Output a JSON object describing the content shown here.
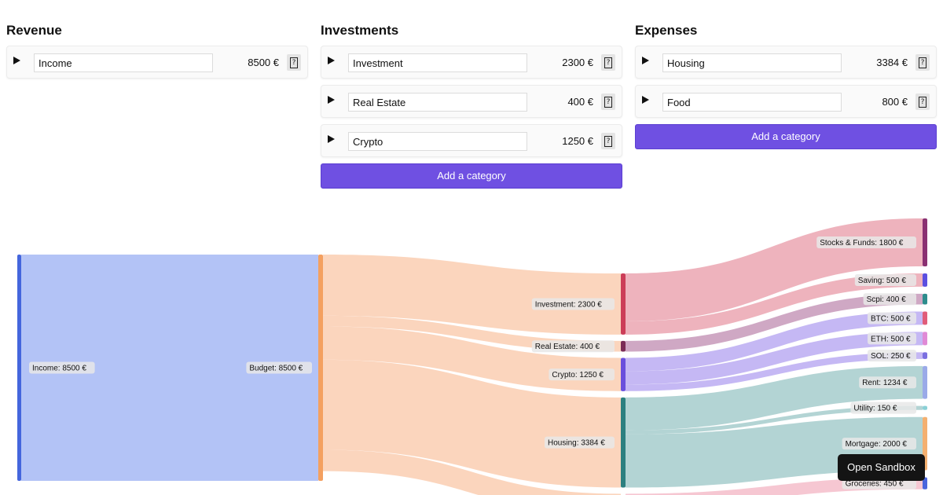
{
  "columns": [
    {
      "title": "Revenue",
      "rows": [
        {
          "name": "Income",
          "amount": "8500 €"
        }
      ],
      "add_label": null
    },
    {
      "title": "Investments",
      "rows": [
        {
          "name": "Investment",
          "amount": "2300 €"
        },
        {
          "name": "Real Estate",
          "amount": "400 €"
        },
        {
          "name": "Crypto",
          "amount": "1250 €"
        }
      ],
      "add_label": "Add a category"
    },
    {
      "title": "Expenses",
      "rows": [
        {
          "name": "Housing",
          "amount": "3384 €"
        },
        {
          "name": "Food",
          "amount": "800 €"
        }
      ],
      "add_label": "Add a category"
    }
  ],
  "help_glyph": "?",
  "icons": {
    "expand": "triangle-right-icon",
    "help": "help-box-icon"
  },
  "chart_data": {
    "type": "sankey",
    "unit": "€",
    "nodes": [
      {
        "id": "income",
        "label": "Income: 8500 €",
        "value": 8500,
        "level": 0,
        "color": "#4466dd"
      },
      {
        "id": "budget",
        "label": "Budget: 8500 €",
        "value": 8500,
        "level": 1,
        "color": "#f4a060"
      },
      {
        "id": "investment",
        "label": "Investment: 2300 €",
        "value": 2300,
        "level": 2,
        "color": "#cc3d58"
      },
      {
        "id": "realestate",
        "label": "Real Estate: 400 €",
        "value": 400,
        "level": 2,
        "color": "#7b2b56"
      },
      {
        "id": "crypto",
        "label": "Crypto: 1250 €",
        "value": 1250,
        "level": 2,
        "color": "#6a4fdc"
      },
      {
        "id": "housing",
        "label": "Housing: 3384 €",
        "value": 3384,
        "level": 2,
        "color": "#2d8080"
      },
      {
        "id": "stocks",
        "label": "Stocks & Funds: 1800 €",
        "value": 1800,
        "level": 3,
        "color": "#8a3172"
      },
      {
        "id": "saving",
        "label": "Saving: 500 €",
        "value": 500,
        "level": 3,
        "color": "#5b4fe0"
      },
      {
        "id": "scpi",
        "label": "Scpi: 400 €",
        "value": 400,
        "level": 3,
        "color": "#2d8c8c"
      },
      {
        "id": "btc",
        "label": "BTC: 500 €",
        "value": 500,
        "level": 3,
        "color": "#e05c7a"
      },
      {
        "id": "eth",
        "label": "ETH: 500 €",
        "value": 500,
        "level": 3,
        "color": "#e08ad6"
      },
      {
        "id": "sol",
        "label": "SOL: 250 €",
        "value": 250,
        "level": 3,
        "color": "#7b6fe0"
      },
      {
        "id": "rent",
        "label": "Rent: 1234 €",
        "value": 1234,
        "level": 3,
        "color": "#9aaae8"
      },
      {
        "id": "utility",
        "label": "Utility: 150 €",
        "value": 150,
        "level": 3,
        "color": "#8ad0d6"
      },
      {
        "id": "mortgage",
        "label": "Mortgage: 2000 €",
        "value": 2000,
        "level": 3,
        "color": "#f4b070"
      },
      {
        "id": "groceries",
        "label": "Groceries: 450 €",
        "value": 450,
        "level": 3,
        "color": "#4a66dd"
      }
    ],
    "links": [
      {
        "source": "income",
        "target": "budget",
        "value": 8500,
        "color": "#b3c3f6"
      },
      {
        "source": "budget",
        "target": "investment",
        "value": 2300,
        "color": "#fbd5bd"
      },
      {
        "source": "budget",
        "target": "realestate",
        "value": 400,
        "color": "#fbd5bd"
      },
      {
        "source": "budget",
        "target": "crypto",
        "value": 1250,
        "color": "#fbd5bd"
      },
      {
        "source": "budget",
        "target": "housing",
        "value": 3384,
        "color": "#fbd5bd"
      },
      {
        "source": "budget",
        "target": "food",
        "value": 800,
        "color": "#fbd5bd"
      },
      {
        "source": "investment",
        "target": "stocks",
        "value": 1800,
        "color": "#eeb3bd"
      },
      {
        "source": "investment",
        "target": "saving",
        "value": 500,
        "color": "#eeb3bd"
      },
      {
        "source": "realestate",
        "target": "scpi",
        "value": 400,
        "color": "#cfa8c4"
      },
      {
        "source": "crypto",
        "target": "btc",
        "value": 500,
        "color": "#c5b8f4"
      },
      {
        "source": "crypto",
        "target": "eth",
        "value": 500,
        "color": "#c5b8f4"
      },
      {
        "source": "crypto",
        "target": "sol",
        "value": 250,
        "color": "#c5b8f4"
      },
      {
        "source": "housing",
        "target": "rent",
        "value": 1234,
        "color": "#b3d4d4"
      },
      {
        "source": "housing",
        "target": "utility",
        "value": 150,
        "color": "#b3d4d4"
      },
      {
        "source": "housing",
        "target": "mortgage",
        "value": 2000,
        "color": "#b3d4d4"
      },
      {
        "source": "food",
        "target": "groceries",
        "value": 450,
        "color": "#f6c7d2"
      }
    ]
  },
  "sandbox_label": "Open Sandbox"
}
